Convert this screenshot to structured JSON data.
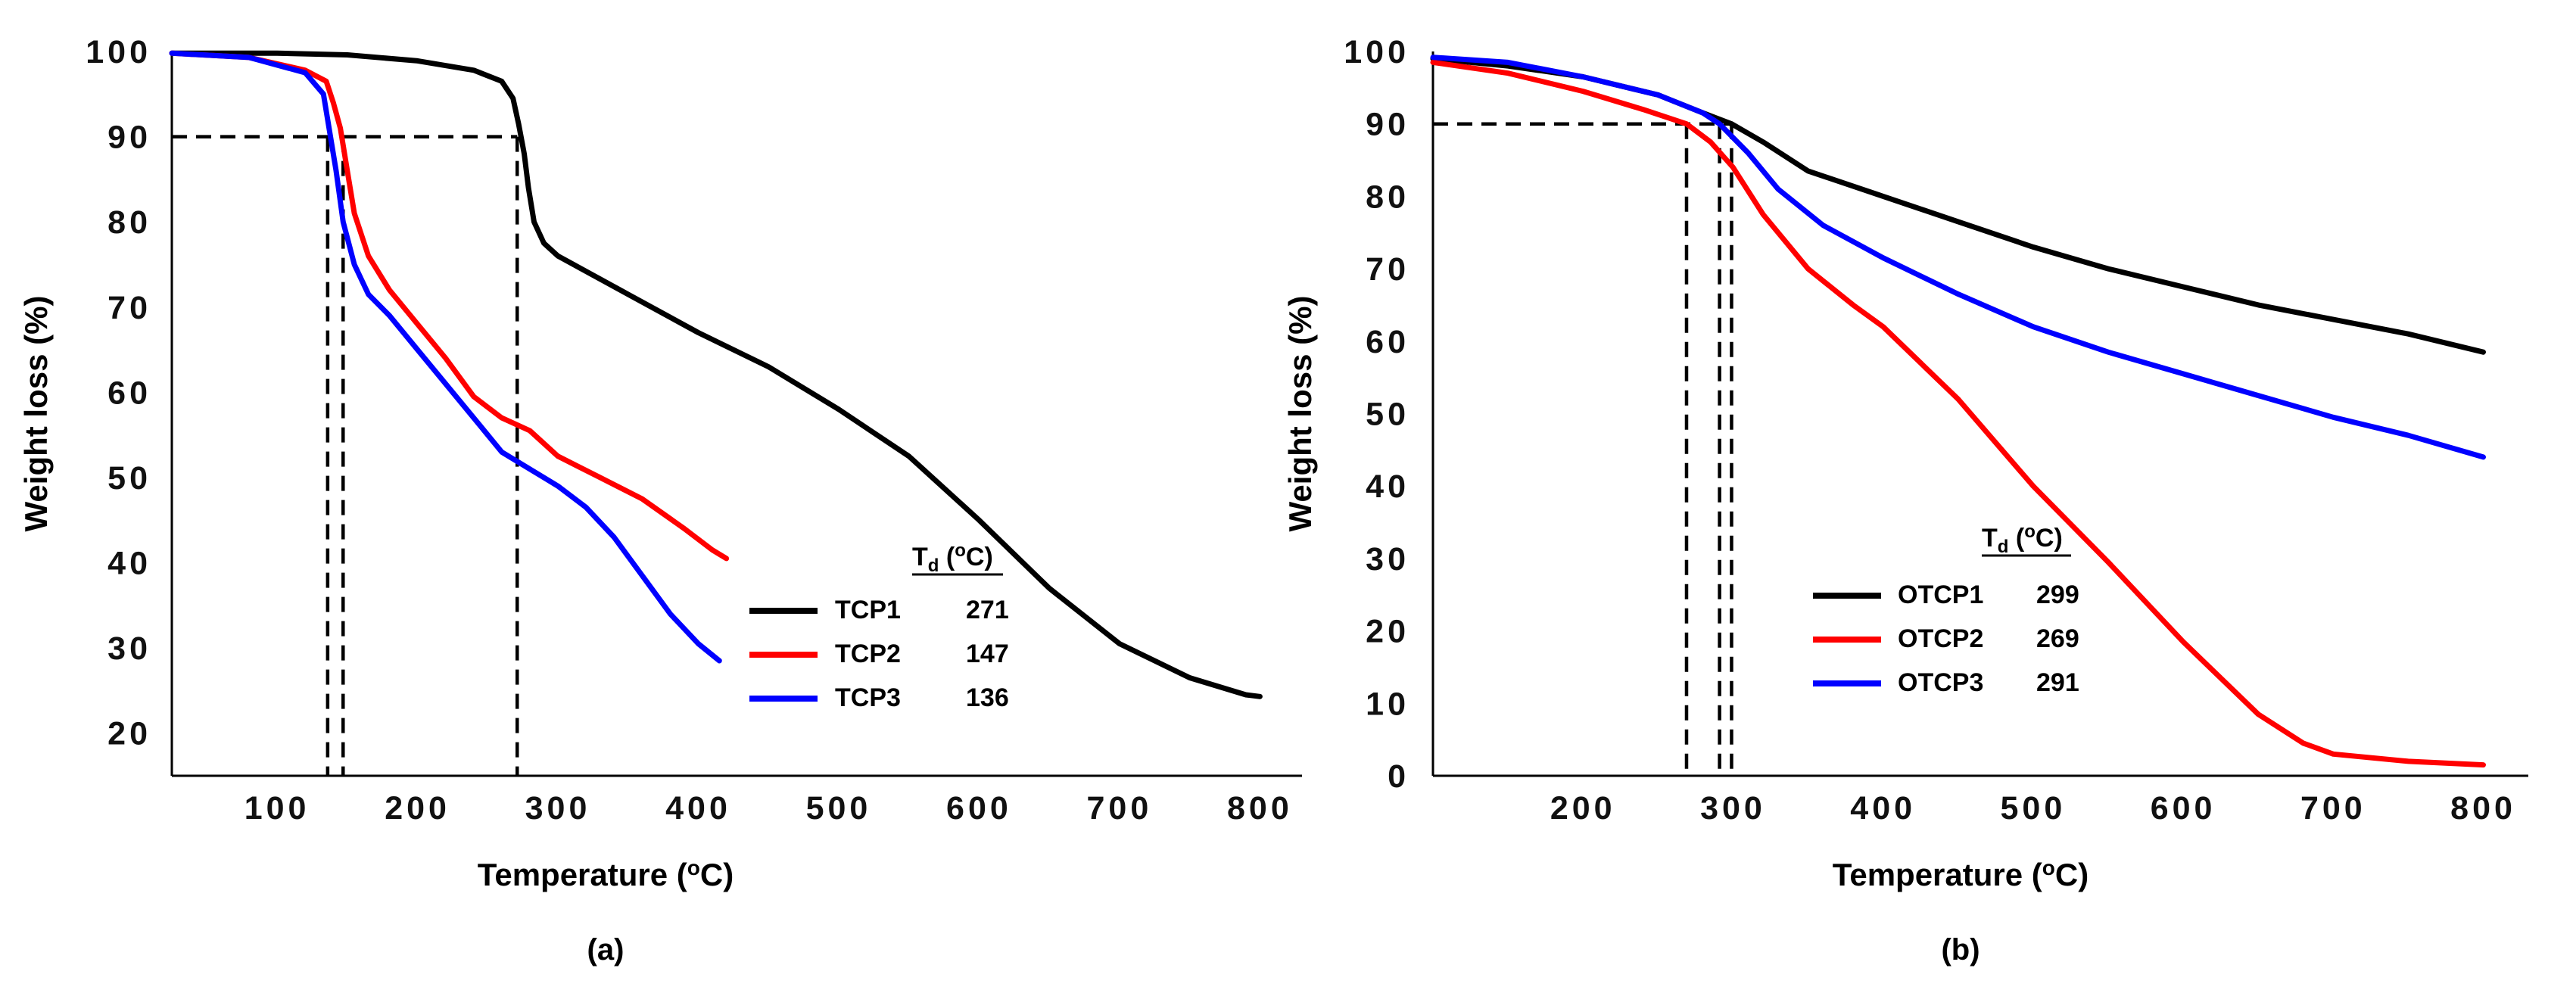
{
  "chart_data": [
    {
      "panel_label": "(a)",
      "type": "line",
      "xlabel": "Temperature (",
      "xlabel_unit": "oC)",
      "ylabel": "Weight loss (%)",
      "xlim": [
        25,
        830
      ],
      "ylim": [
        15,
        100
      ],
      "x_ticks": [
        "100",
        "200",
        "300",
        "400",
        "500",
        "600",
        "700",
        "800"
      ],
      "y_ticks": [
        "20",
        "30",
        "40",
        "50",
        "60",
        "70",
        "80",
        "90",
        "100"
      ],
      "legend_header": "T",
      "legend_header_sub": "d",
      "legend_header_unit": " (oC)",
      "threshold": 90,
      "series": [
        {
          "name": "TCP1",
          "td": "271",
          "color": "#000000",
          "points": [
            [
              25,
              99.8
            ],
            [
              100,
              99.8
            ],
            [
              150,
              99.6
            ],
            [
              200,
              98.9
            ],
            [
              240,
              97.8
            ],
            [
              260,
              96.5
            ],
            [
              268,
              94.5
            ],
            [
              272,
              91.5
            ],
            [
              276,
              88
            ],
            [
              279,
              84
            ],
            [
              283,
              80
            ],
            [
              290,
              77.5
            ],
            [
              300,
              76
            ],
            [
              350,
              71.5
            ],
            [
              400,
              67
            ],
            [
              450,
              63
            ],
            [
              500,
              58
            ],
            [
              550,
              52.5
            ],
            [
              600,
              45
            ],
            [
              650,
              37
            ],
            [
              700,
              30.5
            ],
            [
              750,
              26.5
            ],
            [
              790,
              24.5
            ],
            [
              800,
              24.3
            ]
          ]
        },
        {
          "name": "TCP2",
          "td": "147",
          "color": "#ff0000",
          "points": [
            [
              25,
              99.8
            ],
            [
              80,
              99.3
            ],
            [
              120,
              97.8
            ],
            [
              135,
              96.5
            ],
            [
              140,
              94
            ],
            [
              145,
              91
            ],
            [
              150,
              86
            ],
            [
              155,
              81
            ],
            [
              165,
              76
            ],
            [
              180,
              72
            ],
            [
              200,
              68
            ],
            [
              220,
              64
            ],
            [
              240,
              59.5
            ],
            [
              260,
              57
            ],
            [
              280,
              55.5
            ],
            [
              300,
              52.5
            ],
            [
              330,
              50
            ],
            [
              360,
              47.5
            ],
            [
              390,
              44
            ],
            [
              410,
              41.5
            ],
            [
              420,
              40.5
            ]
          ]
        },
        {
          "name": "TCP3",
          "td": "136",
          "color": "#0000ff",
          "points": [
            [
              25,
              99.8
            ],
            [
              80,
              99.3
            ],
            [
              120,
              97.5
            ],
            [
              133,
              95
            ],
            [
              137,
              91
            ],
            [
              142,
              86
            ],
            [
              147,
              80
            ],
            [
              155,
              75
            ],
            [
              165,
              71.5
            ],
            [
              180,
              69
            ],
            [
              200,
              65
            ],
            [
              220,
              61
            ],
            [
              240,
              57
            ],
            [
              260,
              53
            ],
            [
              280,
              51
            ],
            [
              300,
              49
            ],
            [
              320,
              46.5
            ],
            [
              340,
              43
            ],
            [
              360,
              38.5
            ],
            [
              380,
              34
            ],
            [
              400,
              30.5
            ],
            [
              415,
              28.5
            ]
          ]
        }
      ]
    },
    {
      "panel_label": "(b)",
      "type": "line",
      "xlabel": "Temperature (",
      "xlabel_unit": "oC)",
      "ylabel": "Weight loss (%)",
      "xlim": [
        100,
        830
      ],
      "ylim": [
        0,
        100
      ],
      "x_ticks": [
        "200",
        "300",
        "400",
        "500",
        "600",
        "700",
        "800"
      ],
      "y_ticks": [
        "0",
        "10",
        "20",
        "30",
        "40",
        "50",
        "60",
        "70",
        "80",
        "90",
        "100"
      ],
      "legend_header": "T",
      "legend_header_sub": "d",
      "legend_header_unit": " (oC)",
      "threshold": 90,
      "series": [
        {
          "name": "OTCP1",
          "td": "299",
          "color": "#000000",
          "points": [
            [
              100,
              99
            ],
            [
              150,
              98
            ],
            [
              200,
              96.5
            ],
            [
              250,
              94
            ],
            [
              280,
              91.5
            ],
            [
              299,
              90
            ],
            [
              320,
              87.5
            ],
            [
              350,
              83.5
            ],
            [
              400,
              80
            ],
            [
              450,
              76.5
            ],
            [
              500,
              73
            ],
            [
              550,
              70
            ],
            [
              600,
              67.5
            ],
            [
              650,
              65
            ],
            [
              700,
              63
            ],
            [
              750,
              61
            ],
            [
              800,
              58.5
            ]
          ]
        },
        {
          "name": "OTCP2",
          "td": "269",
          "color": "#ff0000",
          "points": [
            [
              100,
              98.5
            ],
            [
              150,
              97
            ],
            [
              200,
              94.5
            ],
            [
              240,
              92
            ],
            [
              269,
              90
            ],
            [
              285,
              87.5
            ],
            [
              300,
              84
            ],
            [
              320,
              77.5
            ],
            [
              350,
              70
            ],
            [
              380,
              65
            ],
            [
              400,
              62
            ],
            [
              450,
              52
            ],
            [
              500,
              40
            ],
            [
              550,
              29.5
            ],
            [
              600,
              18.5
            ],
            [
              650,
              8.5
            ],
            [
              680,
              4.5
            ],
            [
              700,
              3
            ],
            [
              750,
              2
            ],
            [
              800,
              1.5
            ]
          ]
        },
        {
          "name": "OTCP3",
          "td": "291",
          "color": "#0000ff",
          "points": [
            [
              100,
              99.2
            ],
            [
              150,
              98.5
            ],
            [
              200,
              96.5
            ],
            [
              250,
              94
            ],
            [
              280,
              91.5
            ],
            [
              291,
              90
            ],
            [
              310,
              86
            ],
            [
              330,
              81
            ],
            [
              360,
              76
            ],
            [
              400,
              71.5
            ],
            [
              450,
              66.5
            ],
            [
              500,
              62
            ],
            [
              550,
              58.5
            ],
            [
              600,
              55.5
            ],
            [
              650,
              52.5
            ],
            [
              700,
              49.5
            ],
            [
              750,
              47
            ],
            [
              800,
              44
            ]
          ]
        }
      ]
    }
  ]
}
